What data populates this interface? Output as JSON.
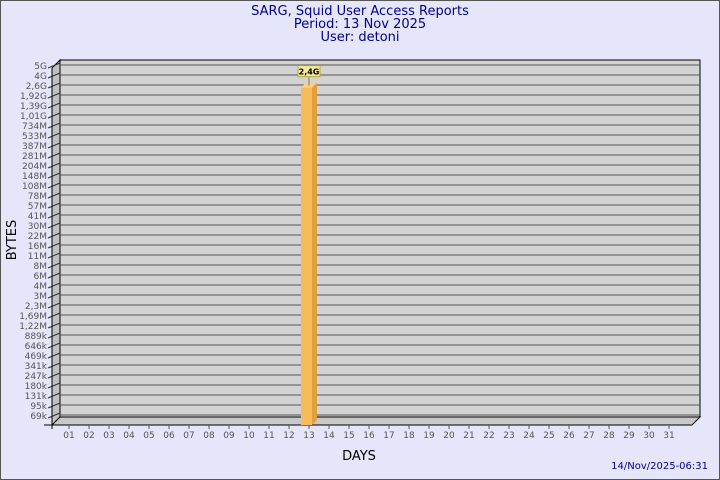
{
  "chart_data": {
    "type": "bar",
    "title": "SARG, Squid User Access Reports",
    "subtitle_period": "Period: 13 Nov 2025",
    "subtitle_user": "User: detoni",
    "xlabel": "DAYS",
    "ylabel": "BYTES",
    "y_scale": "log",
    "y_tick_labels": [
      "5G",
      "4G",
      "2,6G",
      "1,92G",
      "1,39G",
      "1,01G",
      "734M",
      "533M",
      "387M",
      "281M",
      "204M",
      "148M",
      "108M",
      "78M",
      "57M",
      "41M",
      "30M",
      "22M",
      "16M",
      "11M",
      "8M",
      "6M",
      "4M",
      "3M",
      "2,3M",
      "1,69M",
      "1,22M",
      "889k",
      "646k",
      "469k",
      "341k",
      "247k",
      "180k",
      "131k",
      "95k",
      "69k"
    ],
    "categories": [
      "01",
      "02",
      "03",
      "04",
      "05",
      "06",
      "07",
      "08",
      "09",
      "10",
      "11",
      "12",
      "13",
      "14",
      "15",
      "16",
      "17",
      "18",
      "19",
      "20",
      "21",
      "22",
      "23",
      "24",
      "25",
      "26",
      "27",
      "28",
      "29",
      "30",
      "31"
    ],
    "bars": [
      {
        "category": "13",
        "value": 2400000000.0,
        "label": "2,4G"
      }
    ],
    "grid": true,
    "colors": {
      "bar_front": "#f8bb5a",
      "bar_side": "#e0a040",
      "plot_bg": "#d3d3d3",
      "text": "#00008b",
      "label_bg": "#f5eb9a"
    }
  },
  "timestamp": "14/Nov/2025-06:31"
}
